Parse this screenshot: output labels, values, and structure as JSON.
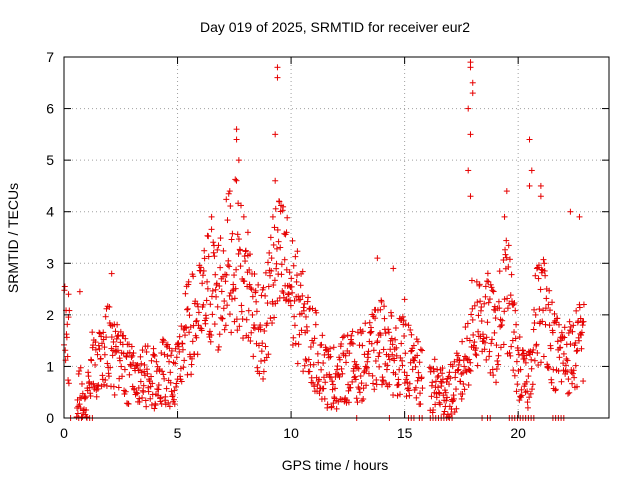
{
  "chart_data": {
    "type": "scatter",
    "title": "Day 019 of 2025, SRMTID for receiver eur2",
    "xlabel": "GPS time / hours",
    "ylabel": "SRMTID / TECUs",
    "xlim": [
      0,
      24
    ],
    "ylim": [
      0,
      7
    ],
    "xticks": [
      0,
      5,
      10,
      15,
      20
    ],
    "yticks": [
      0,
      1,
      2,
      3,
      4,
      5,
      6,
      7
    ],
    "xtick_labels": [
      "0",
      "5",
      "10",
      "15",
      "20"
    ],
    "ytick_labels": [
      "0",
      "1",
      "2",
      "3",
      "4",
      "5",
      "6",
      "7"
    ],
    "grid": true,
    "marker": "plus",
    "color": "#e60000",
    "envelope": {
      "x": [
        0.0,
        0.5,
        0.7,
        1.0,
        1.3,
        1.6,
        2.0,
        2.2,
        2.6,
        3.0,
        3.5,
        4.0,
        4.5,
        5.0,
        5.3,
        5.6,
        6.0,
        6.4,
        6.8,
        7.2,
        7.6,
        8.0,
        8.4,
        8.8,
        9.2,
        9.6,
        10.0,
        10.4,
        10.8,
        11.2,
        11.6,
        12.0,
        12.5,
        13.0,
        13.5,
        14.0,
        14.5,
        15.0,
        15.5,
        16.0,
        16.5,
        17.0,
        17.5,
        18.0,
        18.5,
        19.0,
        19.5,
        20.0,
        20.4,
        20.8,
        21.2,
        21.6,
        22.0,
        22.4,
        22.8
      ],
      "y": [
        2.1,
        0.5,
        0.6,
        0.2,
        1.2,
        1.0,
        1.5,
        1.2,
        1.0,
        0.8,
        0.8,
        0.8,
        0.9,
        0.8,
        1.6,
        1.8,
        2.0,
        2.6,
        2.4,
        3.0,
        3.2,
        2.6,
        2.0,
        1.6,
        2.8,
        3.0,
        2.5,
        2.0,
        1.5,
        1.2,
        0.8,
        0.8,
        1.0,
        1.0,
        1.2,
        1.5,
        1.2,
        1.2,
        0.9,
        0.6,
        0.6,
        0.5,
        0.8,
        1.8,
        2.0,
        1.5,
        2.5,
        1.0,
        0.6,
        2.0,
        2.2,
        1.3,
        1.2,
        1.2,
        1.5
      ]
    },
    "outliers": [
      {
        "x": 9.4,
        "y": 6.8
      },
      {
        "x": 9.4,
        "y": 6.6
      },
      {
        "x": 9.3,
        "y": 5.5
      },
      {
        "x": 7.6,
        "y": 5.6
      },
      {
        "x": 7.6,
        "y": 5.4
      },
      {
        "x": 7.7,
        "y": 5.0
      },
      {
        "x": 17.9,
        "y": 6.9
      },
      {
        "x": 17.9,
        "y": 6.8
      },
      {
        "x": 18.0,
        "y": 6.5
      },
      {
        "x": 18.0,
        "y": 6.3
      },
      {
        "x": 17.8,
        "y": 6.0
      },
      {
        "x": 17.9,
        "y": 5.5
      },
      {
        "x": 20.5,
        "y": 5.4
      },
      {
        "x": 20.6,
        "y": 4.8
      },
      {
        "x": 20.5,
        "y": 4.5
      },
      {
        "x": 21.0,
        "y": 4.5
      },
      {
        "x": 21.0,
        "y": 4.3
      },
      {
        "x": 22.3,
        "y": 4.0
      },
      {
        "x": 22.7,
        "y": 3.9
      },
      {
        "x": 19.5,
        "y": 4.4
      },
      {
        "x": 19.4,
        "y": 3.9
      },
      {
        "x": 17.8,
        "y": 4.8
      },
      {
        "x": 17.9,
        "y": 4.3
      },
      {
        "x": 7.3,
        "y": 4.4
      },
      {
        "x": 9.3,
        "y": 4.6
      },
      {
        "x": 9.2,
        "y": 3.9
      },
      {
        "x": 6.5,
        "y": 3.9
      },
      {
        "x": 8.1,
        "y": 3.6
      },
      {
        "x": 9.8,
        "y": 3.6
      },
      {
        "x": 13.8,
        "y": 3.1
      },
      {
        "x": 2.1,
        "y": 2.8
      },
      {
        "x": 0.7,
        "y": 2.45
      },
      {
        "x": 0.2,
        "y": 2.4
      },
      {
        "x": 14.5,
        "y": 2.9
      },
      {
        "x": 15.0,
        "y": 2.3
      }
    ]
  }
}
